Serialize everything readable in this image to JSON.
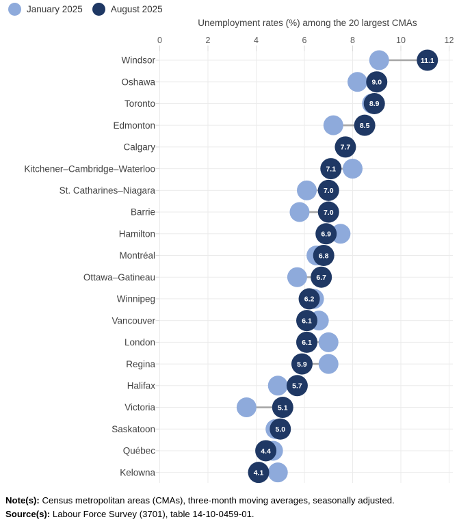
{
  "legend": {
    "items": [
      {
        "label": "January 2025",
        "color": "#8EAADB"
      },
      {
        "label": "August 2025",
        "color": "#1F3864"
      }
    ]
  },
  "title": "Unemployment rates (%) among the 20 largest CMAs",
  "chart_data": {
    "type": "scatter",
    "subtype": "dumbbell-dot-plot",
    "title": "Unemployment rates (%) among the 20 largest CMAs",
    "orientation": "horizontal",
    "categories": [
      "Windsor",
      "Oshawa",
      "Toronto",
      "Edmonton",
      "Calgary",
      "Kitchener–Cambridge–Waterloo",
      "St. Catharines–Niagara",
      "Barrie",
      "Hamilton",
      "Montréal",
      "Ottawa–Gatineau",
      "Winnipeg",
      "Vancouver",
      "London",
      "Regina",
      "Halifax",
      "Victoria",
      "Saskatoon",
      "Québec",
      "Kelowna"
    ],
    "series": [
      {
        "name": "January 2025",
        "color": "#8EAADB",
        "data_labels": false,
        "values": [
          9.1,
          8.2,
          8.8,
          7.2,
          7.7,
          8.0,
          6.1,
          5.8,
          7.5,
          6.5,
          5.7,
          6.4,
          6.6,
          7.0,
          7.0,
          4.9,
          3.6,
          4.8,
          4.7,
          4.9
        ]
      },
      {
        "name": "August 2025",
        "color": "#1F3864",
        "data_labels": true,
        "values": [
          11.1,
          9.0,
          8.9,
          8.5,
          7.7,
          7.1,
          7.0,
          7.0,
          6.9,
          6.8,
          6.7,
          6.2,
          6.1,
          6.1,
          5.9,
          5.7,
          5.1,
          5.0,
          4.4,
          4.1
        ]
      }
    ],
    "xlim": [
      0,
      12
    ],
    "x_ticks": [
      0,
      2,
      4,
      6,
      8,
      10,
      12
    ],
    "grid": true,
    "legend_position": "top-left"
  },
  "colors": {
    "jan": "#8EAADB",
    "aug": "#1F3864",
    "connector": "#A6A6A6",
    "grid": "#EBEBEB",
    "tick": "#D9D9D9",
    "axis_text": "#595959",
    "label_text": "#404040"
  },
  "notes": {
    "note_label": "Note(s):",
    "note_text": " Census metropolitan areas (CMAs), three-month moving averages, seasonally adjusted.",
    "source_label": "Source(s):",
    "source_text": " Labour Force Survey (3701), table 14-10-0459-01."
  }
}
